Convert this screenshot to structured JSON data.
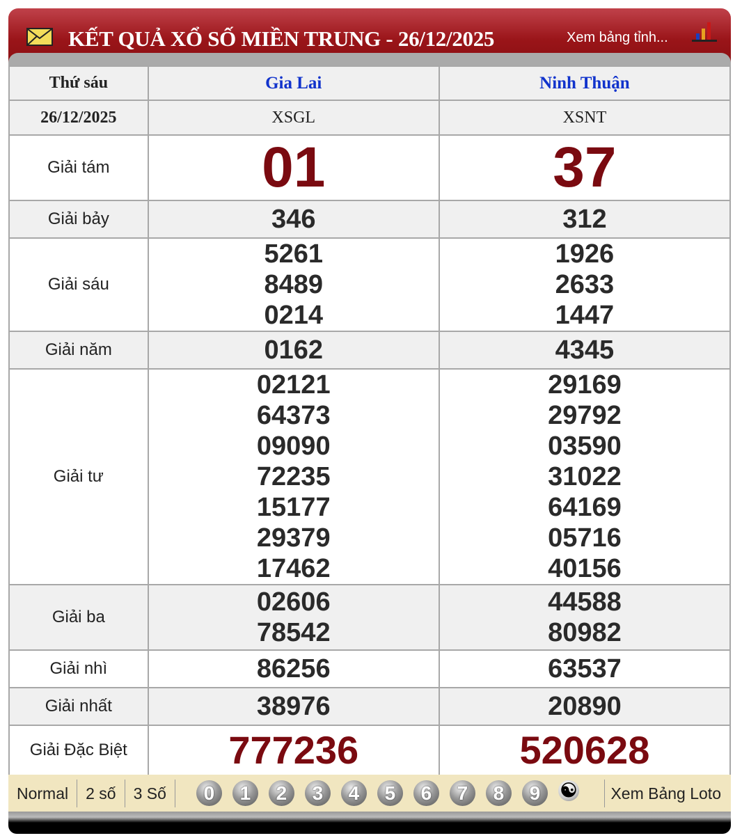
{
  "header": {
    "title": "KẾT QUẢ XỔ SỐ MIỀN TRUNG - 26/12/2025",
    "link": "Xem bảng tỉnh...",
    "icons": [
      "envelope-icon",
      "bar-chart-icon"
    ]
  },
  "table": {
    "day": "Thứ sáu",
    "date": "26/12/2025",
    "provinces": [
      {
        "name": "Gia Lai",
        "code": "XSGL"
      },
      {
        "name": "Ninh Thuận",
        "code": "XSNT"
      }
    ],
    "prizes": [
      {
        "label": "Giải tám",
        "style": "big",
        "values": [
          [
            "01"
          ],
          [
            "37"
          ]
        ]
      },
      {
        "label": "Giải bảy",
        "style": "num",
        "values": [
          [
            "346"
          ],
          [
            "312"
          ]
        ]
      },
      {
        "label": "Giải sáu",
        "style": "num",
        "values": [
          [
            "5261",
            "8489",
            "0214"
          ],
          [
            "1926",
            "2633",
            "1447"
          ]
        ]
      },
      {
        "label": "Giải năm",
        "style": "num",
        "values": [
          [
            "0162"
          ],
          [
            "4345"
          ]
        ]
      },
      {
        "label": "Giải tư",
        "style": "num",
        "values": [
          [
            "02121",
            "64373",
            "09090",
            "72235",
            "15177",
            "29379",
            "17462"
          ],
          [
            "29169",
            "29792",
            "03590",
            "31022",
            "64169",
            "05716",
            "40156"
          ]
        ]
      },
      {
        "label": "Giải ba",
        "style": "num",
        "values": [
          [
            "02606",
            "78542"
          ],
          [
            "44588",
            "80982"
          ]
        ]
      },
      {
        "label": "Giải nhì",
        "style": "num",
        "values": [
          [
            "86256"
          ],
          [
            "63537"
          ]
        ]
      },
      {
        "label": "Giải nhất",
        "style": "num",
        "values": [
          [
            "38976"
          ],
          [
            "20890"
          ]
        ]
      },
      {
        "label": "Giải Đặc Biệt",
        "style": "db",
        "values": [
          [
            "777236"
          ],
          [
            "520628"
          ]
        ]
      }
    ]
  },
  "footer": {
    "modes": [
      "Normal",
      "2 số",
      "3 Số"
    ],
    "digits": [
      "0",
      "1",
      "2",
      "3",
      "4",
      "5",
      "6",
      "7",
      "8",
      "9"
    ],
    "yin_yang_icon": "yin-yang-icon",
    "loto_link": "Xem Bảng Loto"
  },
  "colors": {
    "header_red": "#9a1519",
    "prize_red": "#7a0a10",
    "province_blue": "#1133cc",
    "footer_bg": "#f1e6c0"
  }
}
